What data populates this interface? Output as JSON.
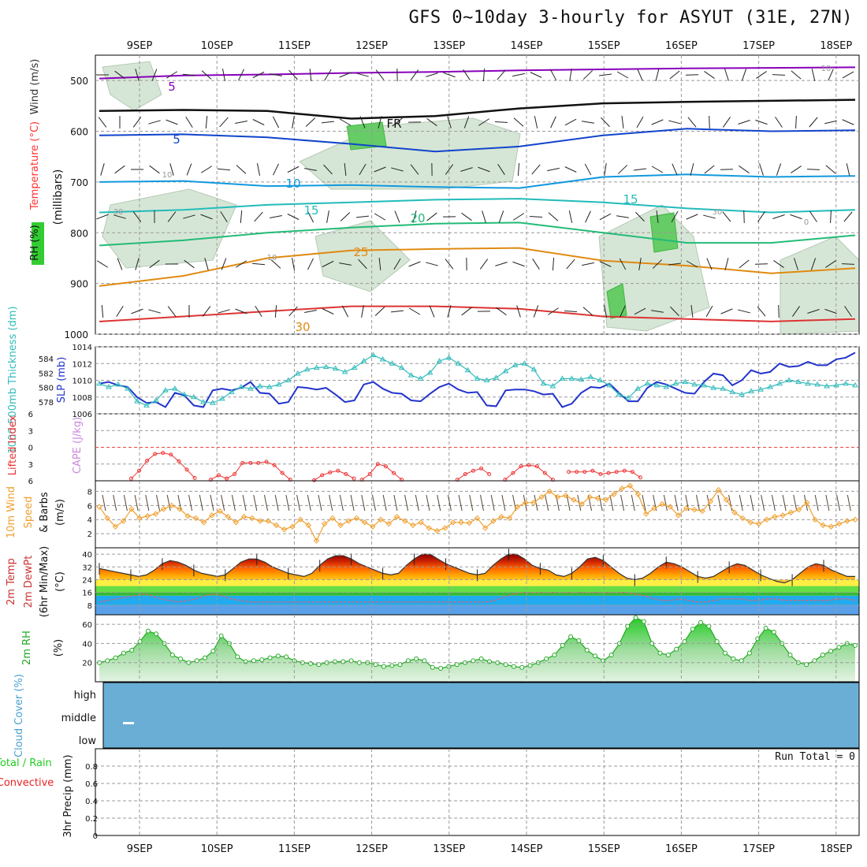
{
  "title": "GFS 0~10day 3-hourly for ASYUT (31E, 27N)",
  "days": [
    "9SEP",
    "10SEP",
    "11SEP",
    "12SEP",
    "13SEP",
    "14SEP",
    "15SEP",
    "16SEP",
    "17SEP",
    "18SEP"
  ],
  "colors": {
    "rh": "#33cc33",
    "temperature": "#ff3333",
    "wind": "#333333",
    "thickness": "#33bbbb",
    "slp": "#2233cc",
    "lifted_index": "#ee3333",
    "cape": "#cc88dd",
    "wind10": "#f0a030",
    "rh2m": "#22aa22",
    "cloud": "#6aaed6",
    "precip_total": "#22cc22",
    "precip_conv": "#ee2222"
  },
  "chart_data": [
    {
      "type": "heatmap",
      "panel": "upper-air cross section",
      "ylabel": "(millibars)",
      "legend_labels": [
        "RH (%)",
        "Temperature (°C)",
        "Wind (m/s)"
      ],
      "y_ticks": [
        500,
        600,
        700,
        800,
        900,
        1000
      ],
      "ylim": [
        1000,
        450
      ],
      "isotherms": [
        {
          "name": "-5",
          "pressure": [
            496,
            490,
            488,
            485,
            483,
            480,
            478,
            476,
            475,
            474
          ]
        },
        {
          "name": "FR",
          "pressure": [
            560,
            558,
            560,
            575,
            570,
            555,
            545,
            542,
            540,
            538
          ]
        },
        {
          "name": "-5",
          "pressure": [
            608,
            606,
            612,
            625,
            640,
            630,
            608,
            595,
            600,
            598
          ]
        },
        {
          "name": "10",
          "pressure": [
            700,
            698,
            708,
            706,
            710,
            712,
            690,
            685,
            690,
            688
          ]
        },
        {
          "name": "15",
          "pressure": [
            760,
            755,
            745,
            740,
            735,
            733,
            740,
            752,
            760,
            755
          ]
        },
        {
          "name": "20",
          "pressure": [
            825,
            815,
            800,
            790,
            782,
            780,
            800,
            820,
            820,
            805
          ]
        },
        {
          "name": "25",
          "pressure": [
            905,
            885,
            850,
            835,
            832,
            830,
            855,
            865,
            880,
            870
          ]
        },
        {
          "name": "30",
          "pressure": [
            975,
            965,
            955,
            945,
            945,
            950,
            965,
            970,
            975,
            970
          ]
        }
      ],
      "contour_labels": [
        "5",
        "FR",
        "5",
        "10",
        "15",
        "20",
        "25",
        "30",
        "10",
        "15",
        "30",
        "10",
        "30",
        "10",
        "0"
      ]
    },
    {
      "type": "line",
      "panel": "thickness-slp",
      "ylabel_left": "1000-500mb Thickness (dm)",
      "ylabel_right": "SLP (mb)",
      "left_ticks": [
        578,
        580,
        582,
        584
      ],
      "right_ticks": [
        1006,
        1008,
        1010,
        1012,
        1014
      ],
      "right_lim": [
        1006,
        1014
      ],
      "x": [
        0,
        1,
        2,
        3,
        4,
        5,
        6,
        7,
        8,
        9,
        10,
        11,
        12,
        13,
        14,
        15,
        16,
        17,
        18,
        19,
        20,
        21,
        22,
        23,
        24,
        25,
        26,
        27,
        28,
        29,
        30,
        31,
        32,
        33,
        34,
        35,
        36,
        37,
        38,
        39,
        40,
        41,
        42,
        43,
        44,
        45,
        46,
        47,
        48,
        49,
        50,
        51,
        52,
        53,
        54,
        55,
        56,
        57,
        58,
        59,
        60,
        61,
        62,
        63,
        64,
        65,
        66,
        67,
        68,
        69,
        70,
        71,
        72,
        73,
        74,
        75,
        76,
        77,
        78,
        79,
        80
      ],
      "series": [
        {
          "name": "SLP",
          "values": [
            1009.6,
            1009.8,
            1009.4,
            1009.2,
            1008.0,
            1007.3,
            1007.4,
            1006.8,
            1008.5,
            1008.2,
            1007.0,
            1006.8,
            1008.8,
            1009.0,
            1008.8,
            1009.1,
            1009.8,
            1008.5,
            1008.4,
            1007.2,
            1007.4,
            1009.2,
            1009.1,
            1008.9,
            1009.1,
            1008.3,
            1007.4,
            1007.6,
            1009.5,
            1009.8,
            1009.0,
            1008.5,
            1008.4,
            1007.6,
            1007.5,
            1008.4,
            1009.2,
            1009.6,
            1008.9,
            1008.5,
            1008.6,
            1007.0,
            1006.9,
            1008.8,
            1008.9,
            1008.9,
            1008.7,
            1008.3,
            1008.4,
            1006.8,
            1007.2,
            1008.5,
            1009.2,
            1009.1,
            1009.6,
            1008.5,
            1007.5,
            1007.5,
            1009.1,
            1009.8,
            1009.5,
            1009.0,
            1008.5,
            1008.4,
            1009.8,
            1010.8,
            1010.6,
            1009.4,
            1010.0,
            1011.2,
            1010.8,
            1011.0,
            1012.0,
            1011.6,
            1011.7,
            1012.2,
            1011.8,
            1011.8,
            1012.5,
            1012.7,
            1013.3
          ]
        },
        {
          "name": "Thickness",
          "values": [
            1009.6,
            1009.2,
            1009.5,
            1009.0,
            1007.5,
            1007.0,
            1007.6,
            1008.8,
            1009.0,
            1008.3,
            1008.0,
            1007.4,
            1007.3,
            1007.8,
            1008.6,
            1009.2,
            1009.0,
            1009.3,
            1009.2,
            1009.5,
            1010.0,
            1010.8,
            1011.3,
            1011.5,
            1011.6,
            1011.4,
            1011.0,
            1011.5,
            1012.3,
            1013.0,
            1012.5,
            1012.0,
            1011.5,
            1010.6,
            1010.2,
            1010.9,
            1012.3,
            1012.7,
            1012.0,
            1011.2,
            1010.2,
            1010.0,
            1010.3,
            1011.1,
            1011.8,
            1012.0,
            1011.3,
            1009.6,
            1009.3,
            1010.2,
            1010.2,
            1010.1,
            1010.4,
            1010.0,
            1009.4,
            1008.3,
            1007.9,
            1009.0,
            1009.6,
            1009.4,
            1009.2,
            1009.6,
            1009.8,
            1009.5,
            1009.4,
            1009.1,
            1009.0,
            1008.6,
            1008.3,
            1008.7,
            1008.9,
            1009.2,
            1009.6,
            1010.0,
            1009.8,
            1009.6,
            1009.5,
            1009.3,
            1009.4,
            1009.6,
            1009.4
          ]
        }
      ]
    },
    {
      "type": "line",
      "panel": "lifted-cape",
      "ylabel_left": "Lifted Index",
      "ylabel_right": "CAPE (J/kg)",
      "ticks": [
        -6,
        -3,
        0,
        3,
        6
      ],
      "ylim": [
        -6,
        6
      ],
      "series": [
        {
          "name": "Lifted Index",
          "segments": [
            {
              "start": 4,
              "values": [
                5.6,
                4.2,
                2.4,
                1.2,
                1.0,
                1.3,
                2.5,
                4.0,
                5.5
              ]
            },
            {
              "start": 14,
              "values": [
                5.8,
                5.0,
                5.6,
                4.8,
                2.8,
                2.8,
                2.8,
                2.6,
                3.2,
                4.6,
                5.8
              ]
            },
            {
              "start": 27,
              "values": [
                5.9,
                5.0,
                4.5,
                4.2,
                4.8,
                5.6
              ]
            },
            {
              "start": 33,
              "values": [
                5.8,
                4.8,
                3.0,
                3.4,
                4.6,
                5.8
              ]
            },
            {
              "start": 45,
              "values": [
                5.8,
                4.8,
                4.2,
                3.8,
                4.8
              ]
            },
            {
              "start": 51,
              "values": [
                5.8,
                4.6,
                3.4,
                3.2,
                3.4,
                4.6,
                5.8
              ]
            },
            {
              "start": 59,
              "values": [
                4.4,
                4.4,
                4.4,
                4.2,
                4.8,
                4.6,
                4.4,
                4.2,
                4.4,
                5.4
              ]
            }
          ]
        }
      ]
    },
    {
      "type": "line",
      "panel": "10m-wind",
      "ylabel": "10m Wind Speed & Barbs (m/s)",
      "ticks": [
        2,
        4,
        6,
        8
      ],
      "ylim": [
        0,
        9.5
      ],
      "series": [
        {
          "name": "Speed",
          "values": [
            5.8,
            4.2,
            3.0,
            3.8,
            5.5,
            4.2,
            4.5,
            4.8,
            5.5,
            6.0,
            5.5,
            4.5,
            4.2,
            3.6,
            4.6,
            5.2,
            4.4,
            3.6,
            4.4,
            4.2,
            3.8,
            3.8,
            3.2,
            2.6,
            3.0,
            4.0,
            3.2,
            1.0,
            3.4,
            4.2,
            3.2,
            3.8,
            4.2,
            3.6,
            3.0,
            4.0,
            3.4,
            4.4,
            3.8,
            3.2,
            3.6,
            2.8,
            2.4,
            2.8,
            3.6,
            3.6,
            3.5,
            4.2,
            2.8,
            3.8,
            4.4,
            4.2,
            5.8,
            6.4,
            6.4,
            7.2,
            8.0,
            7.2,
            7.4,
            6.8,
            6.2,
            7.2,
            7.0,
            6.8,
            7.6,
            8.4,
            8.8,
            7.6,
            4.8,
            5.6,
            6.2,
            5.8,
            4.6,
            5.6,
            5.4,
            5.2,
            6.6,
            8.2,
            6.8,
            5.0,
            4.2,
            3.6,
            3.4,
            4.0,
            4.4,
            4.6,
            5.0,
            5.4,
            6.4,
            4.0,
            3.2,
            3.0,
            3.4,
            3.8,
            4.0
          ]
        }
      ]
    },
    {
      "type": "area",
      "panel": "2m-temp",
      "ylabel": "2m Temp 2m DewPt (6hr Min/Max) (°C)",
      "ticks": [
        8,
        16,
        24,
        32,
        40
      ],
      "ylim": [
        2,
        44
      ],
      "series": [
        {
          "name": "2m Temp",
          "values": [
            31,
            30,
            29,
            28,
            27,
            26,
            27,
            30,
            34,
            36,
            35,
            33,
            30,
            28,
            27,
            26,
            27,
            31,
            35,
            37,
            37,
            35,
            32,
            30,
            28,
            27,
            26,
            28,
            33,
            37,
            39,
            39,
            37,
            34,
            32,
            30,
            28,
            27,
            28,
            33,
            37,
            40,
            40,
            37,
            34,
            32,
            30,
            28,
            27,
            28,
            33,
            37,
            40,
            40,
            37,
            33,
            31,
            30,
            27,
            26,
            28,
            32,
            37,
            38,
            36,
            32,
            28,
            25,
            24,
            25,
            28,
            32,
            35,
            34,
            32,
            29,
            26,
            25,
            26,
            29,
            32,
            34,
            33,
            30,
            27,
            25,
            23,
            22,
            24,
            28,
            32,
            34,
            33,
            30,
            28,
            26,
            26
          ]
        },
        {
          "name": "2m DewPt",
          "values": [
            10,
            11,
            12,
            13,
            14,
            15,
            14,
            12,
            11,
            10,
            11,
            12,
            14,
            15,
            14,
            12,
            11,
            10,
            10,
            10,
            10,
            10,
            10,
            10,
            10,
            10,
            10,
            10,
            10,
            10,
            10,
            10,
            10,
            10,
            10,
            10,
            10,
            10,
            10,
            10,
            10,
            10,
            10,
            10,
            10,
            11,
            13,
            15,
            16,
            16,
            16,
            16,
            16,
            16,
            16,
            16,
            16,
            16,
            16,
            16,
            16,
            15,
            14,
            12,
            11,
            11,
            12,
            11,
            10,
            10,
            11,
            12,
            12,
            12,
            11,
            11,
            12,
            12,
            11,
            11,
            11,
            11,
            11,
            11,
            12,
            12,
            11
          ]
        }
      ]
    },
    {
      "type": "area",
      "panel": "2m-rh",
      "ylabel": "2m RH (%)",
      "ticks": [
        20,
        40,
        60
      ],
      "ylim": [
        0,
        70
      ],
      "series": [
        {
          "name": "2m RH",
          "values": [
            20,
            22,
            25,
            30,
            33,
            42,
            53,
            50,
            40,
            28,
            24,
            20,
            22,
            25,
            32,
            48,
            40,
            26,
            21,
            22,
            23,
            25,
            27,
            26,
            22,
            20,
            19,
            18,
            20,
            21,
            21,
            22,
            20,
            20,
            18,
            16,
            17,
            18,
            22,
            24,
            22,
            15,
            14,
            16,
            18,
            20,
            22,
            24,
            21,
            20,
            18,
            16,
            15,
            17,
            20,
            24,
            28,
            38,
            47,
            43,
            33,
            27,
            22,
            28,
            40,
            58,
            67,
            63,
            40,
            30,
            28,
            34,
            42,
            55,
            62,
            58,
            42,
            30,
            24,
            22,
            30,
            45,
            56,
            52,
            40,
            28,
            20,
            18,
            22,
            28,
            32,
            36,
            40,
            38
          ]
        }
      ]
    },
    {
      "type": "heatmap",
      "panel": "cloud-cover",
      "ylabel": "Cloud Cover (%)",
      "levels": [
        "high",
        "middle",
        "low"
      ],
      "values": [
        0,
        0,
        0
      ]
    },
    {
      "type": "bar",
      "panel": "precip",
      "ylabel": "3hr Precip (mm)",
      "left_labels": [
        "Total / Rain",
        "Convective"
      ],
      "ticks": [
        0,
        0.2,
        0.4,
        0.6,
        0.8
      ],
      "ylim": [
        0,
        1
      ],
      "values": [
        0
      ],
      "run_total": "Run Total = 0"
    }
  ]
}
